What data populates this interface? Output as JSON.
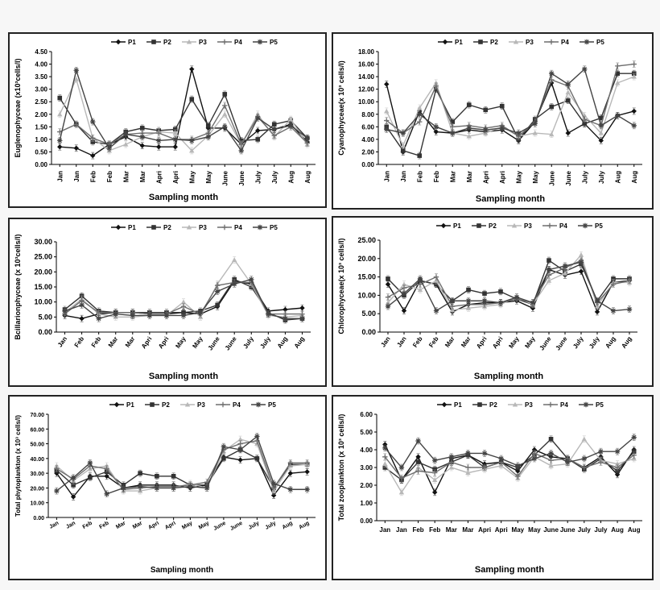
{
  "series_names": [
    "P1",
    "P2",
    "P3",
    "P4",
    "P5"
  ],
  "series_styles": [
    {
      "color": "#111111",
      "marker": "diamond"
    },
    {
      "color": "#333333",
      "marker": "square"
    },
    {
      "color": "#b8b8b8",
      "marker": "triangle"
    },
    {
      "color": "#6e6e6e",
      "marker": "plus"
    },
    {
      "color": "#444444",
      "marker": "star"
    }
  ],
  "chart_data": [
    {
      "type": "line",
      "ylabel": "Euglenophyceae (x10³cells/l)",
      "xlabel": "Sampling month",
      "ylim": [
        0,
        4.5
      ],
      "yticks": [
        "0.00",
        "0.50",
        "1.00",
        "1.50",
        "2.00",
        "2.50",
        "3.00",
        "3.50",
        "4.00",
        "4.50"
      ],
      "categories": [
        "Jan",
        "Jan",
        "Feb",
        "Feb",
        "Mar",
        "Mar",
        "Apri",
        "Apri",
        "May",
        "May",
        "June",
        "June",
        "July",
        "July",
        "Aug",
        "Aug"
      ],
      "series": [
        {
          "name": "P1",
          "values": [
            0.7,
            0.65,
            0.35,
            0.8,
            1.1,
            0.75,
            0.7,
            0.7,
            3.8,
            1.45,
            1.45,
            0.8,
            1.35,
            1.4,
            1.6,
            0.9
          ]
        },
        {
          "name": "P2",
          "values": [
            2.65,
            1.6,
            0.9,
            0.8,
            1.3,
            1.45,
            1.35,
            1.4,
            2.6,
            1.55,
            2.8,
            0.95,
            1.0,
            1.6,
            1.75,
            1.05
          ]
        },
        {
          "name": "P3",
          "values": [
            2.0,
            3.4,
            1.05,
            0.55,
            0.8,
            1.1,
            1.3,
            1.25,
            0.55,
            1.15,
            2.0,
            0.8,
            2.0,
            1.1,
            1.8,
            0.8
          ]
        },
        {
          "name": "P4",
          "values": [
            1.3,
            1.6,
            1.05,
            0.8,
            1.2,
            1.25,
            1.25,
            1.0,
            1.0,
            1.25,
            2.35,
            0.8,
            1.9,
            1.15,
            1.5,
            0.85
          ]
        },
        {
          "name": "P5",
          "values": [
            0.95,
            3.75,
            1.7,
            0.65,
            1.2,
            1.1,
            0.95,
            1.0,
            0.95,
            1.1,
            1.5,
            0.55,
            1.85,
            1.4,
            1.55,
            1.05
          ]
        }
      ]
    },
    {
      "type": "line",
      "ylabel": "Cyanophyceae(x 10³ cells/l)",
      "xlabel": "Sampling month",
      "ylim": [
        0,
        18
      ],
      "yticks": [
        "0.00",
        "2.00",
        "4.00",
        "6.00",
        "8.00",
        "10.00",
        "12.00",
        "14.00",
        "16.00",
        "18.00"
      ],
      "categories": [
        "Jan",
        "Jan",
        "Feb",
        "Feb",
        "Mar",
        "Mar",
        "Apri",
        "Apri",
        "May",
        "May",
        "June",
        "June",
        "July",
        "July",
        "Aug",
        "Aug"
      ],
      "series": [
        {
          "name": "P1",
          "values": [
            12.8,
            2.0,
            8.5,
            5.2,
            5.0,
            5.5,
            5.2,
            5.5,
            3.8,
            6.8,
            13.0,
            5.0,
            6.5,
            3.8,
            7.8,
            8.5
          ]
        },
        {
          "name": "P2",
          "values": [
            6.0,
            2.2,
            1.4,
            12.0,
            6.8,
            9.5,
            8.7,
            9.3,
            4.0,
            7.2,
            9.2,
            10.2,
            6.5,
            7.4,
            14.5,
            14.5
          ]
        },
        {
          "name": "P3",
          "values": [
            8.5,
            3.0,
            9.0,
            13.0,
            5.0,
            4.5,
            5.0,
            6.0,
            4.5,
            5.0,
            4.8,
            11.5,
            7.8,
            5.0,
            13.0,
            14.0
          ]
        },
        {
          "name": "P4",
          "values": [
            7.0,
            5.0,
            6.8,
            12.5,
            6.0,
            6.2,
            5.8,
            6.2,
            4.5,
            6.8,
            13.5,
            12.5,
            7.2,
            6.2,
            15.7,
            16.0
          ]
        },
        {
          "name": "P5",
          "values": [
            5.6,
            5.0,
            8.0,
            6.0,
            5.0,
            5.8,
            5.5,
            5.8,
            5.0,
            6.5,
            14.5,
            12.8,
            15.2,
            6.2,
            7.8,
            6.2
          ]
        }
      ]
    },
    {
      "type": "line",
      "ylabel": "Bcillarionphyceae (x 10³cells/l)",
      "xlabel": "Sampling month",
      "ylim": [
        0,
        30
      ],
      "yticks": [
        "0.00",
        "5.00",
        "10.00",
        "15.00",
        "20.00",
        "25.00",
        "30.00"
      ],
      "categories": [
        "Jan",
        "Feb",
        "Feb",
        "Mar",
        "Mar",
        "Apri",
        "Apri",
        "May",
        "May",
        "June",
        "June",
        "July",
        "July",
        "Aug",
        "Aug"
      ],
      "series": [
        {
          "name": "P1",
          "values": [
            5.5,
            4.5,
            6.0,
            6.5,
            6.5,
            6.0,
            6.0,
            6.5,
            6.0,
            8.5,
            17.0,
            16.0,
            7.0,
            7.5,
            8.0
          ]
        },
        {
          "name": "P2",
          "values": [
            7.5,
            12.0,
            7.0,
            6.5,
            6.5,
            6.5,
            6.5,
            6.5,
            7.0,
            9.0,
            17.5,
            15.0,
            6.5,
            4.0,
            4.5
          ]
        },
        {
          "name": "P3",
          "values": [
            6.5,
            11.0,
            6.0,
            5.0,
            5.0,
            5.5,
            5.5,
            10.0,
            5.0,
            16.0,
            24.0,
            16.0,
            5.5,
            5.0,
            5.5
          ]
        },
        {
          "name": "P4",
          "values": [
            6.0,
            10.5,
            6.5,
            6.5,
            6.5,
            6.0,
            6.0,
            8.5,
            6.0,
            15.5,
            16.5,
            16.5,
            6.0,
            6.0,
            6.0
          ]
        },
        {
          "name": "P5",
          "values": [
            7.0,
            9.0,
            4.5,
            6.0,
            5.5,
            5.5,
            5.5,
            5.5,
            6.5,
            13.5,
            16.0,
            17.5,
            6.0,
            4.5,
            4.5
          ]
        }
      ]
    },
    {
      "type": "line",
      "ylabel": "Chlorophyceae(x 10³ cells/l)",
      "xlabel": "Sampling month",
      "ylim": [
        0,
        25
      ],
      "yticks": [
        "0.00",
        "5.00",
        "10.00",
        "15.00",
        "20.00",
        "25.00"
      ],
      "categories": [
        "Jan",
        "Jan",
        "Feb",
        "Feb",
        "Mar",
        "Mar",
        "Apri",
        "Apri",
        "May",
        "May",
        "June",
        "June",
        "July",
        "July",
        "Aug",
        "Aug"
      ],
      "series": [
        {
          "name": "P1",
          "values": [
            13.0,
            5.8,
            14.0,
            13.0,
            5.5,
            7.5,
            8.0,
            8.0,
            8.5,
            6.5,
            17.0,
            15.5,
            16.5,
            5.5,
            13.5,
            14.0
          ]
        },
        {
          "name": "P2",
          "values": [
            14.5,
            10.0,
            14.0,
            13.0,
            8.5,
            11.5,
            10.5,
            11.0,
            9.0,
            7.5,
            19.5,
            16.5,
            18.5,
            8.5,
            14.5,
            14.5
          ]
        },
        {
          "name": "P3",
          "values": [
            8.0,
            13.0,
            11.5,
            14.0,
            6.0,
            6.5,
            7.0,
            7.5,
            9.5,
            7.5,
            14.0,
            16.0,
            21.0,
            7.0,
            13.5,
            13.5
          ]
        },
        {
          "name": "P4",
          "values": [
            9.5,
            12.0,
            13.0,
            15.0,
            7.0,
            7.5,
            7.5,
            8.0,
            9.0,
            8.0,
            15.5,
            17.5,
            19.5,
            8.0,
            13.0,
            14.0
          ]
        },
        {
          "name": "P5",
          "values": [
            7.0,
            10.5,
            14.5,
            5.8,
            8.5,
            8.5,
            8.5,
            8.0,
            9.5,
            8.0,
            17.0,
            18.0,
            19.0,
            8.5,
            5.8,
            6.2
          ]
        }
      ]
    },
    {
      "type": "line",
      "ylabel": "Total phytoplankton (x 10³ cells/l)",
      "xlabel": "Sampling month",
      "ylim": [
        0,
        70
      ],
      "yticks": [
        "0.00",
        "10.00",
        "20.00",
        "30.00",
        "40.00",
        "50.00",
        "60.00",
        "70.00"
      ],
      "categories": [
        "Jan",
        "Jan",
        "Feb",
        "Feb",
        "Mar",
        "Mar",
        "Apri",
        "Apri",
        "May",
        "May",
        "June",
        "June",
        "July",
        "July",
        "Aug",
        "Aug"
      ],
      "series": [
        {
          "name": "P1",
          "values": [
            30,
            14,
            28,
            28,
            20,
            22,
            22,
            22,
            20,
            22,
            41,
            39,
            40,
            15,
            30,
            31
          ]
        },
        {
          "name": "P2",
          "values": [
            32,
            22,
            27,
            31,
            22,
            30,
            28,
            28,
            22,
            22,
            40,
            46,
            40,
            20,
            36,
            36
          ]
        },
        {
          "name": "P3",
          "values": [
            35,
            25,
            33,
            35,
            18,
            18,
            20,
            20,
            23,
            20,
            45,
            53,
            50,
            18,
            35,
            36
          ]
        },
        {
          "name": "P4",
          "values": [
            33,
            26,
            35,
            33,
            19,
            20,
            21,
            21,
            22,
            24,
            46,
            50,
            52,
            20,
            37,
            37
          ]
        },
        {
          "name": "P5",
          "values": [
            18,
            27,
            37,
            16,
            20,
            21,
            20,
            20,
            21,
            20,
            48,
            46,
            55,
            23,
            19,
            19
          ]
        }
      ]
    },
    {
      "type": "line",
      "ylabel": "Total zooplankton (x 10³ cells/l)",
      "xlabel": "Sampling month",
      "ylim": [
        0,
        6
      ],
      "yticks": [
        "0.00",
        "1.00",
        "2.00",
        "3.00",
        "4.00",
        "5.00",
        "6.00"
      ],
      "categories": [
        "Jan",
        "Jan",
        "Feb",
        "Feb",
        "Mar",
        "Mar",
        "Apri",
        "Apri",
        "May",
        "May",
        "June",
        "June",
        "July",
        "July",
        "Aug",
        "Aug"
      ],
      "series": [
        {
          "name": "P1",
          "values": [
            4.3,
            2.3,
            3.6,
            1.6,
            3.5,
            3.7,
            3.2,
            3.3,
            2.8,
            4.0,
            3.6,
            3.5,
            3.0,
            3.6,
            2.6,
            4.0
          ]
        },
        {
          "name": "P2",
          "values": [
            3.0,
            2.3,
            3.3,
            2.9,
            3.3,
            3.7,
            3.0,
            3.3,
            3.0,
            3.7,
            4.6,
            3.5,
            2.9,
            3.5,
            2.8,
            3.9
          ]
        },
        {
          "name": "P3",
          "values": [
            3.2,
            1.6,
            3.0,
            2.3,
            3.0,
            2.7,
            2.9,
            3.1,
            2.4,
            3.6,
            3.1,
            3.2,
            4.6,
            3.4,
            3.2,
            3.5
          ]
        },
        {
          "name": "P4",
          "values": [
            3.6,
            2.4,
            2.8,
            2.7,
            3.3,
            3.0,
            3.0,
            3.3,
            2.5,
            3.8,
            3.4,
            3.5,
            3.0,
            3.3,
            3.0,
            3.7
          ]
        },
        {
          "name": "P5",
          "values": [
            4.1,
            3.0,
            4.5,
            3.4,
            3.6,
            3.8,
            3.8,
            3.5,
            3.1,
            3.5,
            3.8,
            3.3,
            3.5,
            3.9,
            3.9,
            4.7
          ]
        }
      ]
    }
  ]
}
